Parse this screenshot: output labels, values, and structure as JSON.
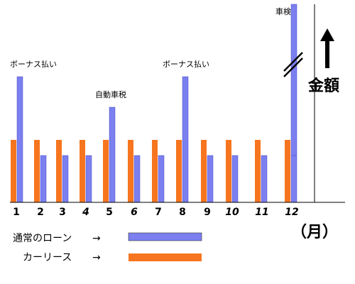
{
  "chart_data": {
    "type": "bar",
    "categories": [
      "1",
      "2",
      "3",
      "4",
      "5",
      "6",
      "7",
      "8",
      "9",
      "10",
      "11",
      "12"
    ],
    "series": [
      {
        "name": "カーリース",
        "values": [
          88,
          88,
          88,
          88,
          88,
          88,
          88,
          88,
          88,
          88,
          88,
          88
        ]
      },
      {
        "name": "通常のローン",
        "values": [
          66,
          66,
          66,
          66,
          66,
          66,
          66,
          66,
          66,
          66,
          66,
          66
        ]
      }
    ],
    "extra_loan_payments": [
      {
        "month": "1",
        "value": 177,
        "label": "ボーナス払い"
      },
      {
        "month": "5",
        "value": 134,
        "label": "自動車税"
      },
      {
        "month": "8",
        "value": 177,
        "label": "ボーナス払い"
      },
      {
        "month": "12",
        "value": 280,
        "label": "車検",
        "broken_axis": true
      }
    ],
    "ylim": [
      0,
      280
    ],
    "ylabel": "金額",
    "xlabel": "（月）",
    "legend_placement": "bottom-left",
    "colors": {
      "lease": "#f7751f",
      "loan": "#7b7fef"
    }
  },
  "legend": {
    "items": [
      {
        "label": "通常のローン",
        "arrow": "→",
        "color": "#7b7fef"
      },
      {
        "label": "カーリース",
        "arrow": "→",
        "color": "#f7751f"
      }
    ]
  },
  "axis_glyph": "up-arrow"
}
